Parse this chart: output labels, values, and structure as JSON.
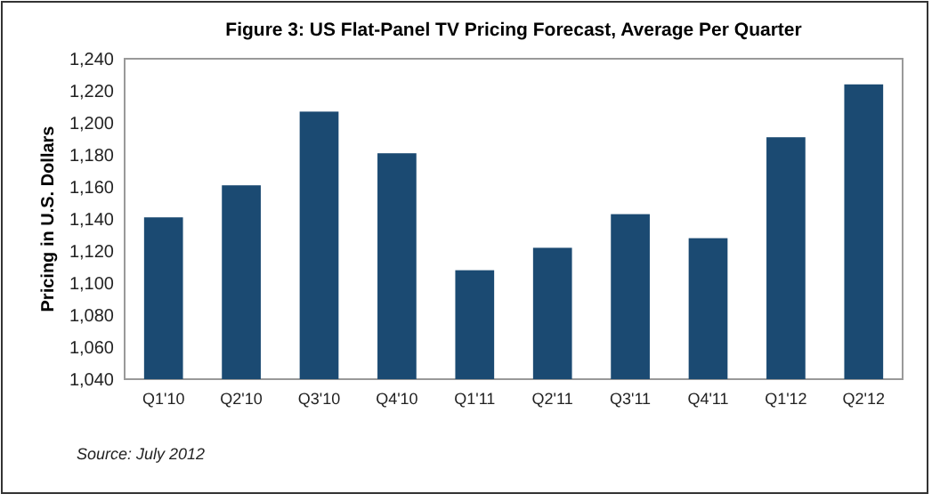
{
  "chart_data": {
    "type": "bar",
    "title": "Figure 3: US Flat-Panel TV Pricing Forecast, Average Per Quarter",
    "ylabel": "Pricing in U.S. Dollars",
    "categories": [
      "Q1'10",
      "Q2'10",
      "Q3'10",
      "Q4'10",
      "Q1'11",
      "Q2'11",
      "Q3'11",
      "Q4'11",
      "Q1'12",
      "Q2'12"
    ],
    "values": [
      1141,
      1161,
      1207,
      1181,
      1108,
      1122,
      1143,
      1128,
      1191,
      1224
    ],
    "color": "#1b4a72",
    "ylim": [
      1040,
      1240
    ],
    "yticks": [
      {
        "value": 1040,
        "label": "1,040"
      },
      {
        "value": 1060,
        "label": "1,060"
      },
      {
        "value": 1080,
        "label": "1,080"
      },
      {
        "value": 1100,
        "label": "1,100"
      },
      {
        "value": 1120,
        "label": "1,120"
      },
      {
        "value": 1140,
        "label": "1,140"
      },
      {
        "value": 1160,
        "label": "1,160"
      },
      {
        "value": 1180,
        "label": "1,180"
      },
      {
        "value": 1200,
        "label": "1,200"
      },
      {
        "value": 1220,
        "label": "1,220"
      },
      {
        "value": 1240,
        "label": "1,240"
      }
    ],
    "annotations": [
      "Source: July 2012"
    ]
  }
}
